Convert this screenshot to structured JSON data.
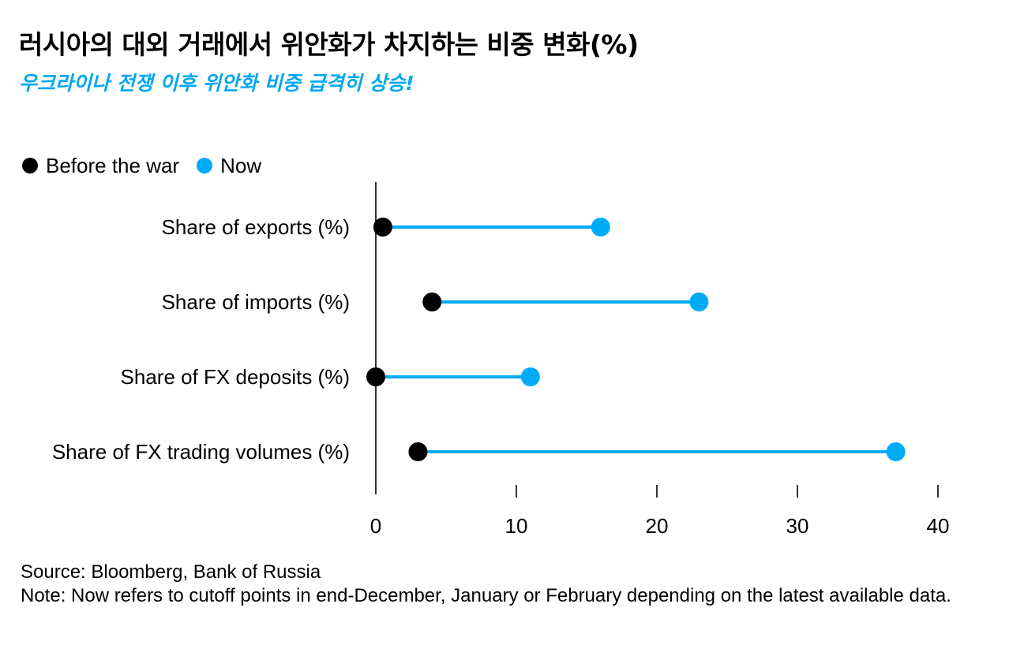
{
  "title": "러시아의 대외 거래에서 위안화가 차지하는 비중 변화(%)",
  "subtitle": "우크라이나 전쟁 이후 위안화 비중 급격히 상승!",
  "source": "Source: Bloomberg, Bank of Russia",
  "note": "Note: Now refers to cutoff points in end-December, January or February depending on the latest available data.",
  "colors": {
    "before": "#000000",
    "now": "#00abf5",
    "connector": "#00abf5",
    "axis": "#000000"
  },
  "chart_data": {
    "type": "dumbbell",
    "categories": [
      "Share of exports (%)",
      "Share of imports (%)",
      "Share of FX deposits (%)",
      "Share of FX trading volumes (%)"
    ],
    "series": [
      {
        "name": "Before the war",
        "values": [
          0.5,
          4,
          0,
          3
        ]
      },
      {
        "name": "Now",
        "values": [
          16,
          23,
          11,
          37
        ]
      }
    ],
    "xlim": [
      0,
      40
    ],
    "xticks": [
      "0",
      "10",
      "20",
      "30",
      "40"
    ],
    "grid": false,
    "legend_position": "top-left"
  }
}
